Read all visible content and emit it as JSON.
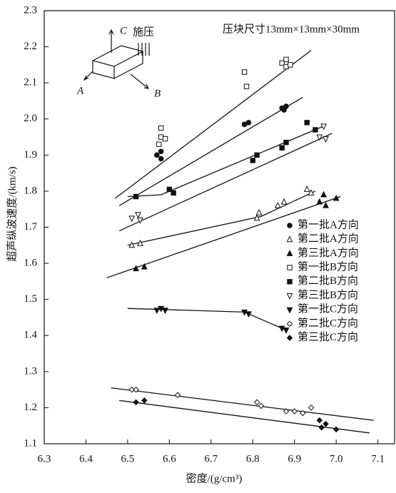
{
  "chart_data": {
    "type": "scatter",
    "x_label": "密度/(g/cm³)",
    "y_label": "超声纵波速度/(km/s)",
    "annotation": "压块尺寸13mm×13mm×30mm",
    "inset": {
      "c": "C",
      "a": "A",
      "b": "B",
      "press": "施压"
    },
    "xlim": [
      6.3,
      7.14
    ],
    "ylim": [
      1.1,
      2.3
    ],
    "xticks": [
      6.3,
      6.4,
      6.5,
      6.6,
      6.7,
      6.8,
      6.9,
      {
        "value": 7,
        "label": "7.0"
      },
      7.1
    ],
    "yticks": [
      1.1,
      1.2,
      1.3,
      1.4,
      1.5,
      1.6,
      1.7,
      1.8,
      1.9,
      {
        "value": 2,
        "label": "2.0"
      },
      2.1,
      2.2,
      2.3
    ],
    "series": [
      {
        "name": "第一批A方向",
        "marker": "circle",
        "filled": true,
        "x": [
          6.57,
          6.58,
          6.58,
          6.78,
          6.79,
          6.87,
          6.875,
          6.88
        ],
        "values": [
          1.9,
          1.91,
          1.89,
          1.985,
          1.99,
          2.03,
          2.025,
          2.035
        ],
        "fit_x": [
          6.48,
          6.92
        ],
        "fit_y": [
          1.76,
          2.06
        ]
      },
      {
        "name": "第二批A方向",
        "marker": "triangle",
        "filled": false,
        "x": [
          6.51,
          6.53,
          6.81,
          6.815,
          6.86,
          6.875,
          6.93,
          6.94
        ],
        "values": [
          1.65,
          1.655,
          1.725,
          1.74,
          1.76,
          1.77,
          1.805,
          1.795
        ],
        "fit_x": [
          6.5,
          6.82,
          6.95
        ],
        "fit_y": [
          1.65,
          1.73,
          1.8
        ]
      },
      {
        "name": "第三批A方向",
        "marker": "triangle",
        "filled": true,
        "x": [
          6.52,
          6.54,
          6.96,
          6.97,
          6.975,
          7.0
        ],
        "values": [
          1.585,
          1.59,
          1.77,
          1.79,
          1.76,
          1.78
        ],
        "fit_x": [
          6.45,
          7.01
        ],
        "fit_y": [
          1.56,
          1.785
        ]
      },
      {
        "name": "第一批B方向",
        "marker": "square",
        "filled": false,
        "x": [
          6.575,
          6.58,
          6.58,
          6.59,
          6.78,
          6.785,
          6.87,
          6.88,
          6.88,
          6.89
        ],
        "values": [
          1.93,
          1.95,
          1.975,
          1.945,
          2.13,
          2.09,
          2.155,
          2.165,
          2.145,
          2.15
        ],
        "fit_x": [
          6.47,
          6.94
        ],
        "fit_y": [
          1.78,
          2.19
        ]
      },
      {
        "name": "第二批B方向",
        "marker": "square",
        "filled": true,
        "x": [
          6.52,
          6.6,
          6.61,
          6.8,
          6.81,
          6.87,
          6.88,
          6.93,
          6.95
        ],
        "values": [
          1.785,
          1.805,
          1.795,
          1.885,
          1.9,
          1.92,
          1.935,
          1.99,
          1.97
        ],
        "fit_x": [
          6.5,
          6.58,
          6.97
        ],
        "fit_y": [
          1.785,
          1.79,
          1.98
        ]
      },
      {
        "name": "第三批B方向",
        "marker": "triangle-down",
        "filled": false,
        "x": [
          6.51,
          6.525,
          6.53,
          6.96,
          6.97,
          6.975
        ],
        "values": [
          1.725,
          1.735,
          1.72,
          1.95,
          1.98,
          1.945
        ],
        "fit_x": [
          6.48,
          6.99
        ],
        "fit_y": [
          1.69,
          1.96
        ]
      },
      {
        "name": "第一批C方向",
        "marker": "triangle-down",
        "filled": true,
        "x": [
          6.57,
          6.58,
          6.59,
          6.78,
          6.79,
          6.87,
          6.88
        ],
        "values": [
          1.47,
          1.475,
          1.47,
          1.465,
          1.46,
          1.42,
          1.415
        ],
        "fit_x": [
          6.5,
          6.78,
          6.88
        ],
        "fit_y": [
          1.475,
          1.465,
          1.415
        ]
      },
      {
        "name": "第二批C方向",
        "marker": "diamond",
        "filled": false,
        "x": [
          6.51,
          6.52,
          6.62,
          6.81,
          6.82,
          6.88,
          6.9,
          6.92,
          6.94
        ],
        "values": [
          1.25,
          1.25,
          1.235,
          1.215,
          1.205,
          1.19,
          1.19,
          1.185,
          1.2
        ],
        "fit_x": [
          6.46,
          7.09
        ],
        "fit_y": [
          1.255,
          1.165
        ]
      },
      {
        "name": "第三批C方向",
        "marker": "diamond",
        "filled": true,
        "x": [
          6.52,
          6.54,
          6.96,
          6.965,
          6.975,
          7.0
        ],
        "values": [
          1.215,
          1.22,
          1.165,
          1.145,
          1.155,
          1.14
        ],
        "fit_x": [
          6.48,
          7.08
        ],
        "fit_y": [
          1.22,
          1.13
        ]
      }
    ]
  }
}
